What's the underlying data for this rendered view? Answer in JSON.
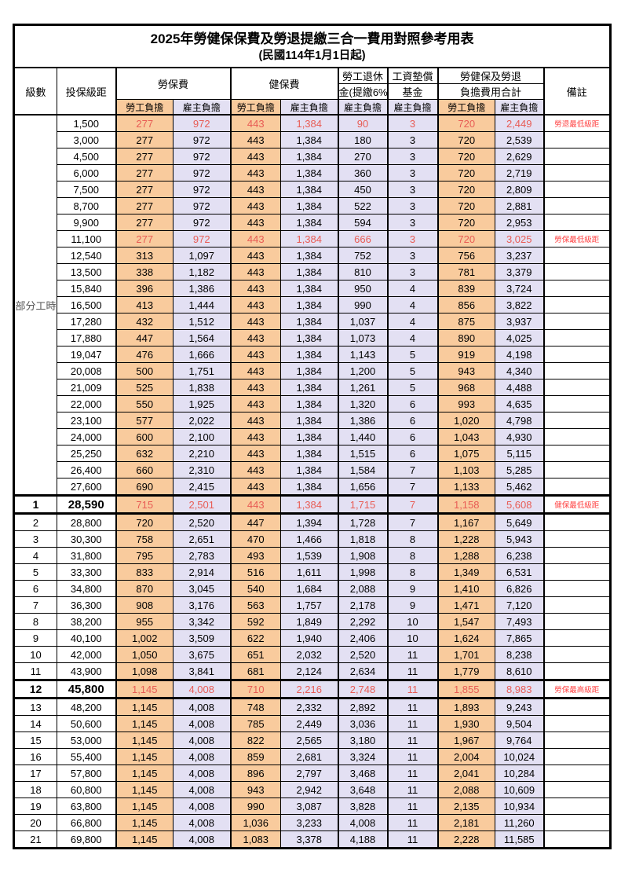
{
  "title": "2025年勞健保保費及勞退提繳三合一費用對照參考用表",
  "subtitle": "(民國114年1月1日起)",
  "part_time_label": "部分工時",
  "part_time_rowspan": 23,
  "columns": {
    "level": "級數",
    "bracket": "投保級距",
    "labor": "勞保費",
    "health": "健保費",
    "pension_top": "勞工退休",
    "pension_bottom": "金(提繳6%)",
    "fund_top": "工資墊償",
    "fund_bottom": "基金",
    "total_top": "勞健保及勞退",
    "total_bottom": "負擔費用合計",
    "employee": "勞工負擔",
    "employer": "雇主負擔",
    "remark": "備註"
  },
  "colors": {
    "employee_bg": "#F9CB9D",
    "employer_bg": "#E3E0F3",
    "highlight_value_text": "#E85C55",
    "remark_text": "#FF4343"
  },
  "row_fields": [
    "level",
    "bracket",
    "labor_employee",
    "labor_employer",
    "health_employee",
    "health_employer",
    "pension_employer",
    "fund_employer",
    "total_employee",
    "total_employer",
    "remark",
    "style"
  ],
  "rows": [
    [
      "",
      "1,500",
      "277",
      "972",
      "443",
      "1,384",
      "90",
      "3",
      "720",
      "2,449",
      "勞退最低級距",
      "red"
    ],
    [
      "",
      "3,000",
      "277",
      "972",
      "443",
      "1,384",
      "180",
      "3",
      "720",
      "2,539",
      "",
      ""
    ],
    [
      "",
      "4,500",
      "277",
      "972",
      "443",
      "1,384",
      "270",
      "3",
      "720",
      "2,629",
      "",
      ""
    ],
    [
      "",
      "6,000",
      "277",
      "972",
      "443",
      "1,384",
      "360",
      "3",
      "720",
      "2,719",
      "",
      ""
    ],
    [
      "",
      "7,500",
      "277",
      "972",
      "443",
      "1,384",
      "450",
      "3",
      "720",
      "2,809",
      "",
      ""
    ],
    [
      "",
      "8,700",
      "277",
      "972",
      "443",
      "1,384",
      "522",
      "3",
      "720",
      "2,881",
      "",
      ""
    ],
    [
      "",
      "9,900",
      "277",
      "972",
      "443",
      "1,384",
      "594",
      "3",
      "720",
      "2,953",
      "",
      ""
    ],
    [
      "",
      "11,100",
      "277",
      "972",
      "443",
      "1,384",
      "666",
      "3",
      "720",
      "3,025",
      "勞保最低級距",
      "red"
    ],
    [
      "",
      "12,540",
      "313",
      "1,097",
      "443",
      "1,384",
      "752",
      "3",
      "756",
      "3,237",
      "",
      ""
    ],
    [
      "",
      "13,500",
      "338",
      "1,182",
      "443",
      "1,384",
      "810",
      "3",
      "781",
      "3,379",
      "",
      ""
    ],
    [
      "",
      "15,840",
      "396",
      "1,386",
      "443",
      "1,384",
      "950",
      "4",
      "839",
      "3,724",
      "",
      ""
    ],
    [
      "",
      "16,500",
      "413",
      "1,444",
      "443",
      "1,384",
      "990",
      "4",
      "856",
      "3,822",
      "",
      ""
    ],
    [
      "",
      "17,280",
      "432",
      "1,512",
      "443",
      "1,384",
      "1,037",
      "4",
      "875",
      "3,937",
      "",
      ""
    ],
    [
      "",
      "17,880",
      "447",
      "1,564",
      "443",
      "1,384",
      "1,073",
      "4",
      "890",
      "4,025",
      "",
      ""
    ],
    [
      "",
      "19,047",
      "476",
      "1,666",
      "443",
      "1,384",
      "1,143",
      "5",
      "919",
      "4,198",
      "",
      ""
    ],
    [
      "",
      "20,008",
      "500",
      "1,751",
      "443",
      "1,384",
      "1,200",
      "5",
      "943",
      "4,340",
      "",
      ""
    ],
    [
      "",
      "21,009",
      "525",
      "1,838",
      "443",
      "1,384",
      "1,261",
      "5",
      "968",
      "4,488",
      "",
      ""
    ],
    [
      "",
      "22,000",
      "550",
      "1,925",
      "443",
      "1,384",
      "1,320",
      "6",
      "993",
      "4,635",
      "",
      ""
    ],
    [
      "",
      "23,100",
      "577",
      "2,022",
      "443",
      "1,384",
      "1,386",
      "6",
      "1,020",
      "4,798",
      "",
      ""
    ],
    [
      "",
      "24,000",
      "600",
      "2,100",
      "443",
      "1,384",
      "1,440",
      "6",
      "1,043",
      "4,930",
      "",
      ""
    ],
    [
      "",
      "25,250",
      "632",
      "2,210",
      "443",
      "1,384",
      "1,515",
      "6",
      "1,075",
      "5,115",
      "",
      ""
    ],
    [
      "",
      "26,400",
      "660",
      "2,310",
      "443",
      "1,384",
      "1,584",
      "7",
      "1,103",
      "5,285",
      "",
      ""
    ],
    [
      "",
      "27,600",
      "690",
      "2,415",
      "443",
      "1,384",
      "1,656",
      "7",
      "1,133",
      "5,462",
      "",
      ""
    ],
    [
      "1",
      "28,590",
      "715",
      "2,501",
      "443",
      "1,384",
      "1,715",
      "7",
      "1,158",
      "5,608",
      "健保最低級距",
      "red-bold"
    ],
    [
      "2",
      "28,800",
      "720",
      "2,520",
      "447",
      "1,394",
      "1,728",
      "7",
      "1,167",
      "5,649",
      "",
      ""
    ],
    [
      "3",
      "30,300",
      "758",
      "2,651",
      "470",
      "1,466",
      "1,818",
      "8",
      "1,228",
      "5,943",
      "",
      ""
    ],
    [
      "4",
      "31,800",
      "795",
      "2,783",
      "493",
      "1,539",
      "1,908",
      "8",
      "1,288",
      "6,238",
      "",
      ""
    ],
    [
      "5",
      "33,300",
      "833",
      "2,914",
      "516",
      "1,611",
      "1,998",
      "8",
      "1,349",
      "6,531",
      "",
      ""
    ],
    [
      "6",
      "34,800",
      "870",
      "3,045",
      "540",
      "1,684",
      "2,088",
      "9",
      "1,410",
      "6,826",
      "",
      ""
    ],
    [
      "7",
      "36,300",
      "908",
      "3,176",
      "563",
      "1,757",
      "2,178",
      "9",
      "1,471",
      "7,120",
      "",
      ""
    ],
    [
      "8",
      "38,200",
      "955",
      "3,342",
      "592",
      "1,849",
      "2,292",
      "10",
      "1,547",
      "7,493",
      "",
      ""
    ],
    [
      "9",
      "40,100",
      "1,002",
      "3,509",
      "622",
      "1,940",
      "2,406",
      "10",
      "1,624",
      "7,865",
      "",
      ""
    ],
    [
      "10",
      "42,000",
      "1,050",
      "3,675",
      "651",
      "2,032",
      "2,520",
      "11",
      "1,701",
      "8,238",
      "",
      ""
    ],
    [
      "11",
      "43,900",
      "1,098",
      "3,841",
      "681",
      "2,124",
      "2,634",
      "11",
      "1,779",
      "8,610",
      "",
      ""
    ],
    [
      "12",
      "45,800",
      "1,145",
      "4,008",
      "710",
      "2,216",
      "2,748",
      "11",
      "1,855",
      "8,983",
      "勞保最高級距",
      "red-bold"
    ],
    [
      "13",
      "48,200",
      "1,145",
      "4,008",
      "748",
      "2,332",
      "2,892",
      "11",
      "1,893",
      "9,243",
      "",
      ""
    ],
    [
      "14",
      "50,600",
      "1,145",
      "4,008",
      "785",
      "2,449",
      "3,036",
      "11",
      "1,930",
      "9,504",
      "",
      ""
    ],
    [
      "15",
      "53,000",
      "1,145",
      "4,008",
      "822",
      "2,565",
      "3,180",
      "11",
      "1,967",
      "9,764",
      "",
      ""
    ],
    [
      "16",
      "55,400",
      "1,145",
      "4,008",
      "859",
      "2,681",
      "3,324",
      "11",
      "2,004",
      "10,024",
      "",
      ""
    ],
    [
      "17",
      "57,800",
      "1,145",
      "4,008",
      "896",
      "2,797",
      "3,468",
      "11",
      "2,041",
      "10,284",
      "",
      ""
    ],
    [
      "18",
      "60,800",
      "1,145",
      "4,008",
      "943",
      "2,942",
      "3,648",
      "11",
      "2,088",
      "10,609",
      "",
      ""
    ],
    [
      "19",
      "63,800",
      "1,145",
      "4,008",
      "990",
      "3,087",
      "3,828",
      "11",
      "2,135",
      "10,934",
      "",
      ""
    ],
    [
      "20",
      "66,800",
      "1,145",
      "4,008",
      "1,036",
      "3,233",
      "4,008",
      "11",
      "2,181",
      "11,260",
      "",
      ""
    ],
    [
      "21",
      "69,800",
      "1,145",
      "4,008",
      "1,083",
      "3,378",
      "4,188",
      "11",
      "2,228",
      "11,585",
      "",
      ""
    ]
  ]
}
